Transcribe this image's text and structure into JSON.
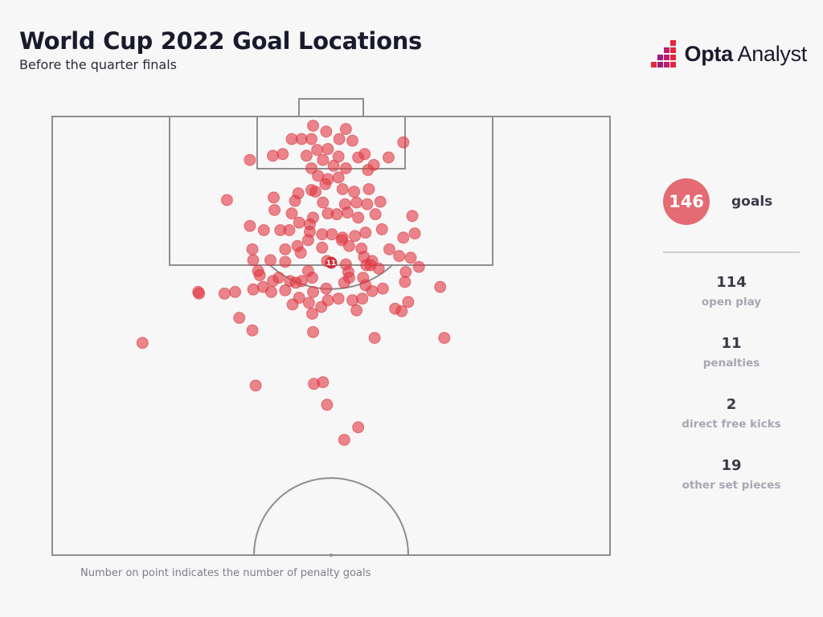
{
  "header": {
    "title": "World Cup 2022 Goal Locations",
    "subtitle": "Before the quarter finals"
  },
  "brand": {
    "name_bold": "Opta",
    "name_light": " Analyst",
    "icon": "opta-pixel-logo-icon"
  },
  "summary": {
    "total_value": "146",
    "total_label": "goals",
    "breakdown": [
      {
        "value": "114",
        "label": "open play"
      },
      {
        "value": "11",
        "label": "penalties"
      },
      {
        "value": "2",
        "label": "direct free kicks"
      },
      {
        "value": "19",
        "label": "other set pieces"
      }
    ]
  },
  "footnote": "Number on point indicates the number of penalty goals",
  "colors": {
    "background": "#f7f7f7",
    "goal_dot": "#e23c47",
    "total_badge": "#e46a73",
    "pitch_lines": "#8e8e8e",
    "title_text": "#1a1a2e"
  },
  "chart_data": {
    "type": "scatter",
    "title": "World Cup 2022 Goal Locations",
    "subtitle": "Before the quarter finals",
    "xlim": [
      0,
      68
    ],
    "ylim": [
      0,
      52.5
    ],
    "series": [
      {
        "name": "",
        "points": [
          [
            31.8,
            51.4
          ],
          [
            33.4,
            50.7
          ],
          [
            35.8,
            51.0
          ],
          [
            31.6,
            49.8
          ],
          [
            30.4,
            49.8
          ],
          [
            29.2,
            49.8
          ],
          [
            33.6,
            48.6
          ],
          [
            35.0,
            49.8
          ],
          [
            36.6,
            49.6
          ],
          [
            42.8,
            49.4
          ],
          [
            32.3,
            48.5
          ],
          [
            31.0,
            47.8
          ],
          [
            33.0,
            47.3
          ],
          [
            34.9,
            47.7
          ],
          [
            37.3,
            47.6
          ],
          [
            38.1,
            48.0
          ],
          [
            28.1,
            48.0
          ],
          [
            26.9,
            47.8
          ],
          [
            24.1,
            47.3
          ],
          [
            31.6,
            46.3
          ],
          [
            34.3,
            46.6
          ],
          [
            35.8,
            46.3
          ],
          [
            38.5,
            46.1
          ],
          [
            39.2,
            46.7
          ],
          [
            41.0,
            47.6
          ],
          [
            32.4,
            45.4
          ],
          [
            33.6,
            45.0
          ],
          [
            34.9,
            45.2
          ],
          [
            33.3,
            44.4
          ],
          [
            31.6,
            43.7
          ],
          [
            30.0,
            43.3
          ],
          [
            32.1,
            43.5
          ],
          [
            35.4,
            43.8
          ],
          [
            36.8,
            43.5
          ],
          [
            38.6,
            43.8
          ],
          [
            27.0,
            42.8
          ],
          [
            29.6,
            42.4
          ],
          [
            33.0,
            42.2
          ],
          [
            35.7,
            42.0
          ],
          [
            37.1,
            42.2
          ],
          [
            38.4,
            42.0
          ],
          [
            40.0,
            42.3
          ],
          [
            21.3,
            42.5
          ],
          [
            27.1,
            41.3
          ],
          [
            29.2,
            40.9
          ],
          [
            31.8,
            40.4
          ],
          [
            33.6,
            40.9
          ],
          [
            34.7,
            40.8
          ],
          [
            36.0,
            41.0
          ],
          [
            37.3,
            40.4
          ],
          [
            39.4,
            40.8
          ],
          [
            43.9,
            40.6
          ],
          [
            30.1,
            39.8
          ],
          [
            31.4,
            39.6
          ],
          [
            24.1,
            39.4
          ],
          [
            25.8,
            38.9
          ],
          [
            27.8,
            38.9
          ],
          [
            28.9,
            38.9
          ],
          [
            31.4,
            38.7
          ],
          [
            32.9,
            38.4
          ],
          [
            34.1,
            38.4
          ],
          [
            35.4,
            38.0
          ],
          [
            36.9,
            38.2
          ],
          [
            38.2,
            38.6
          ],
          [
            40.2,
            39.0
          ],
          [
            42.8,
            38.0
          ],
          [
            44.2,
            38.5
          ],
          [
            31.2,
            37.7
          ],
          [
            32.9,
            36.8
          ],
          [
            35.3,
            37.7
          ],
          [
            36.2,
            37.0
          ],
          [
            37.7,
            36.7
          ],
          [
            41.1,
            36.6
          ],
          [
            24.4,
            36.6
          ],
          [
            28.4,
            36.6
          ],
          [
            29.9,
            37.0
          ],
          [
            30.3,
            36.2
          ],
          [
            38.0,
            35.7
          ],
          [
            43.7,
            35.6
          ],
          [
            26.6,
            35.3
          ],
          [
            35.8,
            34.8
          ],
          [
            38.3,
            34.7
          ],
          [
            42.3,
            35.8
          ],
          [
            24.5,
            35.3
          ],
          [
            28.4,
            35.1
          ],
          [
            33.5,
            35.2
          ],
          [
            39.0,
            35.2
          ],
          [
            38.8,
            34.7
          ],
          [
            25.1,
            34.0
          ],
          [
            25.3,
            33.5
          ],
          [
            27.6,
            33.2
          ],
          [
            31.2,
            34.0
          ],
          [
            31.7,
            33.2
          ],
          [
            36.1,
            33.9
          ],
          [
            36.2,
            33.2
          ],
          [
            37.9,
            33.2
          ],
          [
            39.8,
            34.3
          ],
          [
            43.1,
            33.9
          ],
          [
            44.7,
            34.5
          ],
          [
            26.9,
            32.8
          ],
          [
            29.0,
            32.8
          ],
          [
            29.7,
            32.6
          ],
          [
            30.4,
            32.8
          ],
          [
            35.6,
            32.6
          ],
          [
            38.2,
            32.3
          ],
          [
            43.0,
            32.7
          ],
          [
            24.5,
            31.8
          ],
          [
            25.7,
            32.1
          ],
          [
            22.3,
            31.5
          ],
          [
            17.8,
            31.5
          ],
          [
            17.9,
            31.3
          ],
          [
            21.0,
            31.3
          ],
          [
            26.7,
            31.5
          ],
          [
            28.4,
            31.7
          ],
          [
            31.8,
            31.5
          ],
          [
            33.4,
            31.9
          ],
          [
            39.0,
            31.6
          ],
          [
            40.3,
            31.9
          ],
          [
            47.3,
            32.1
          ],
          [
            30.1,
            30.8
          ],
          [
            31.3,
            30.2
          ],
          [
            33.6,
            30.5
          ],
          [
            34.9,
            30.7
          ],
          [
            36.6,
            30.5
          ],
          [
            37.8,
            30.7
          ],
          [
            29.3,
            30.0
          ],
          [
            32.8,
            29.7
          ],
          [
            41.8,
            29.5
          ],
          [
            43.4,
            30.3
          ],
          [
            37.1,
            29.3
          ],
          [
            42.6,
            29.2
          ],
          [
            31.7,
            28.9
          ],
          [
            22.8,
            28.4
          ],
          [
            24.4,
            26.9
          ],
          [
            31.8,
            26.7
          ],
          [
            39.3,
            26.0
          ],
          [
            47.8,
            26.0
          ],
          [
            11.0,
            25.4
          ],
          [
            24.8,
            20.3
          ],
          [
            31.9,
            20.5
          ],
          [
            33.0,
            20.7
          ],
          [
            33.5,
            18.0
          ],
          [
            37.3,
            15.3
          ],
          [
            35.6,
            13.8
          ]
        ]
      }
    ],
    "labeled_points": [
      {
        "x": 34.0,
        "y": 35.0,
        "label": "11"
      }
    ]
  }
}
